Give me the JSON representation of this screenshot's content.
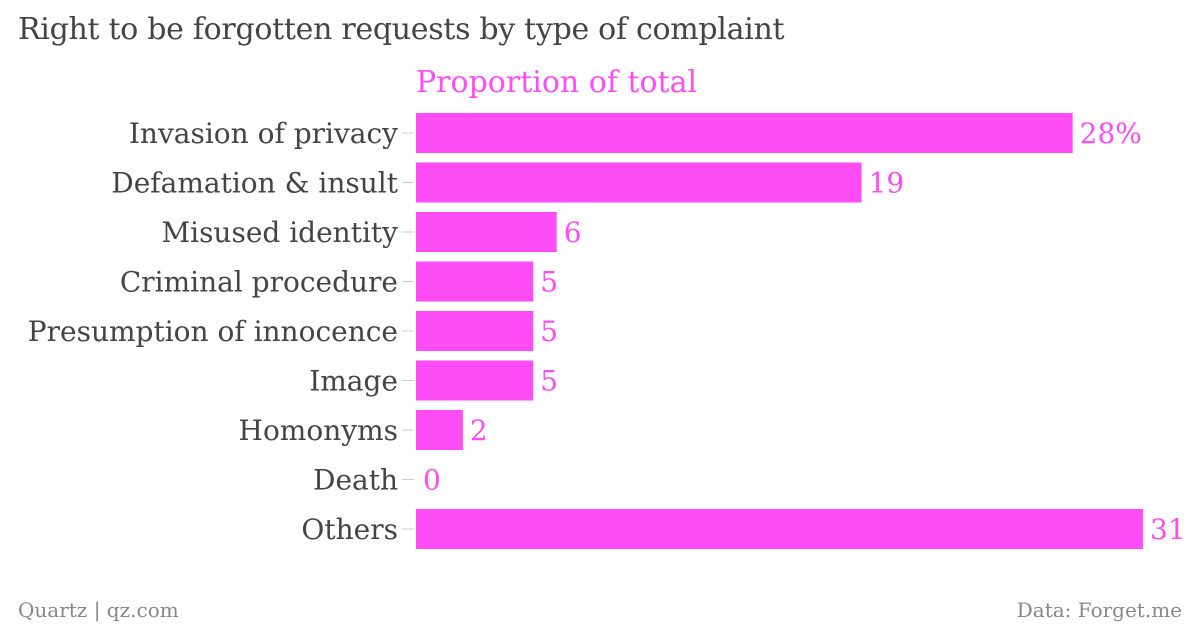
{
  "chart_data": {
    "type": "bar",
    "orientation": "horizontal",
    "title": "Right to be forgotten requests by type of complaint",
    "series": [
      {
        "name": "Proportion of total",
        "color": "#ff4cf5",
        "values": [
          28,
          19,
          6,
          5,
          5,
          5,
          2,
          0,
          31
        ],
        "value_labels": [
          "28%",
          "19",
          "6",
          "5",
          "5",
          "5",
          "2",
          "0",
          "31"
        ]
      }
    ],
    "categories": [
      "Invasion of privacy",
      "Defamation & insult",
      "Misused identity",
      "Criminal procedure",
      "Presumption of innocence",
      "Image",
      "Homonyms",
      "Death",
      "Others"
    ],
    "xlim": [
      0,
      31
    ],
    "grid": false,
    "legend": "none"
  },
  "footer": {
    "source_left": "Quartz | qz.com",
    "source_right": "Data: Forget.me"
  }
}
